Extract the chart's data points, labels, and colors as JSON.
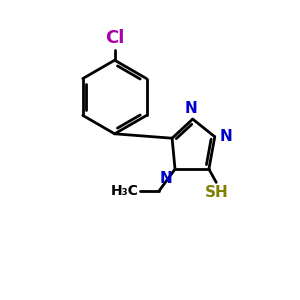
{
  "background_color": "#ffffff",
  "atom_colors": {
    "C": "#000000",
    "N": "#0000cc",
    "S": "#808000",
    "Cl": "#aa00aa",
    "H": "#000000"
  },
  "bond_color": "#000000",
  "bond_width": 2.0,
  "figsize": [
    3.0,
    3.0
  ],
  "dpi": 100,
  "xlim": [
    0,
    10
  ],
  "ylim": [
    0,
    10
  ]
}
